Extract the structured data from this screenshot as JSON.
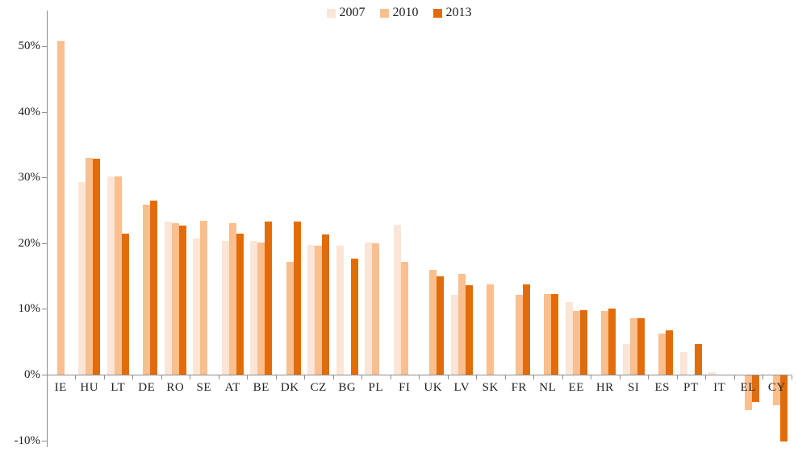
{
  "chart_data": {
    "type": "bar",
    "title": "",
    "xlabel": "",
    "ylabel": "",
    "grid": false,
    "legend_position": "top-center",
    "categories": [
      "IE",
      "HU",
      "LT",
      "DE",
      "RO",
      "SE",
      "AT",
      "BE",
      "DK",
      "CZ",
      "BG",
      "PL",
      "FI",
      "UK",
      "LV",
      "SK",
      "FR",
      "NL",
      "EE",
      "HR",
      "SI",
      "ES",
      "PT",
      "IT",
      "EL",
      "CY"
    ],
    "series": [
      {
        "name": "2007",
        "color": "#FBE5D6",
        "values": [
          null,
          29.3,
          30.1,
          null,
          23.3,
          20.7,
          20.4,
          20.3,
          null,
          19.7,
          19.6,
          20.1,
          22.8,
          null,
          12.1,
          null,
          null,
          null,
          11.0,
          null,
          4.6,
          null,
          3.4,
          0.4,
          null,
          null
        ]
      },
      {
        "name": "2010",
        "color": "#FABF8F",
        "values": [
          50.7,
          33.0,
          30.2,
          25.9,
          23.1,
          23.4,
          23.0,
          20.1,
          17.2,
          19.6,
          null,
          20.0,
          17.2,
          15.9,
          15.3,
          13.7,
          12.1,
          12.2,
          9.7,
          9.7,
          8.6,
          6.2,
          null,
          null,
          -5.3,
          -4.5
        ]
      },
      {
        "name": "2013",
        "color": "#E36C0A",
        "values": [
          null,
          32.8,
          21.4,
          26.5,
          22.7,
          null,
          21.4,
          23.3,
          23.3,
          21.3,
          17.7,
          null,
          null,
          15.0,
          13.6,
          null,
          13.7,
          12.2,
          9.8,
          10.1,
          8.6,
          6.8,
          4.7,
          null,
          -4.0,
          -10.1
        ]
      }
    ],
    "y_axis": {
      "unit": "%",
      "min": -10,
      "max": 55,
      "tick_values": [
        50,
        40,
        30,
        20,
        10,
        0,
        -10
      ],
      "tick_labels": [
        "50%",
        "40%",
        "30%",
        "20%",
        "10%",
        "0%",
        "-10%"
      ]
    },
    "axis_color": "#8c8c8c",
    "background_color": "#ffffff",
    "text_color": "#1f1f1f"
  }
}
